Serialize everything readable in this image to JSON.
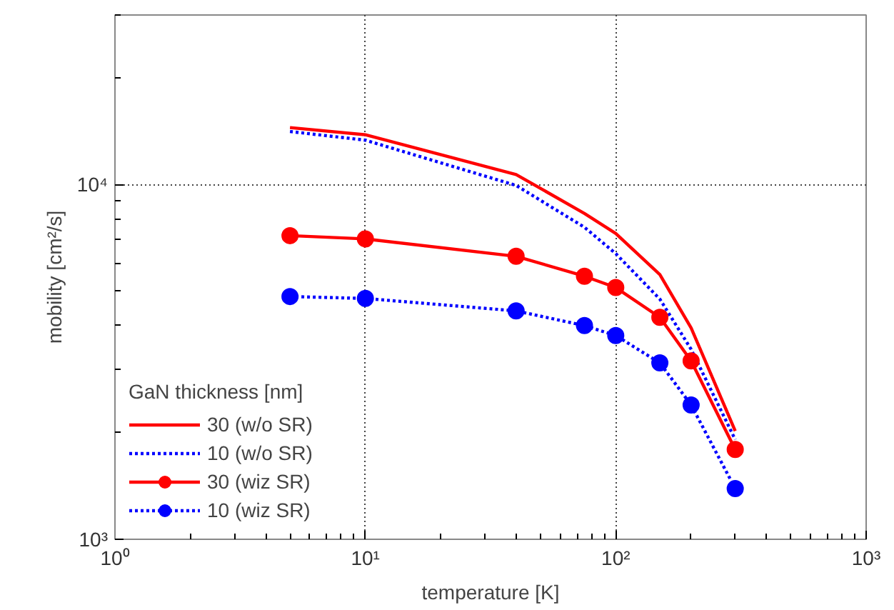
{
  "chart_data": {
    "type": "line",
    "xlabel": "temperature [K]",
    "ylabel": "mobility [cm²/s]",
    "legend_title": "GaN thickness [nm]",
    "legend": "bottom left",
    "grid": true,
    "log": "xy",
    "x": [
      5,
      10,
      40,
      75,
      100,
      150,
      200,
      300
    ],
    "xlim": [
      1,
      1000
    ],
    "ylim": [
      1000,
      30000
    ],
    "xticks": [
      {
        "value": 1,
        "label": "10⁰"
      },
      {
        "value": 10,
        "label": "10¹"
      },
      {
        "value": 100,
        "label": "10²"
      },
      {
        "value": 1000,
        "label": "10³"
      }
    ],
    "yticks": [
      {
        "value": 1000,
        "label": "10³"
      },
      {
        "value": 10000,
        "label": "10⁴"
      }
    ],
    "series": [
      {
        "name": "30 (w/o SR)",
        "color": "#ff0000",
        "line_style": "solid",
        "marker": "none",
        "values": [
          14450,
          13800,
          10660,
          8280,
          7270,
          5570,
          3940,
          2020
        ]
      },
      {
        "name": "10 (w/o SR)",
        "color": "#0000ff",
        "line_style": "dotted",
        "marker": "none",
        "values": [
          14090,
          13320,
          9930,
          7570,
          6380,
          4750,
          3430,
          1910
        ]
      },
      {
        "name": "30 (wiz SR)",
        "color": "#ff0000",
        "line_style": "solid",
        "marker": "circle",
        "values": [
          7170,
          7020,
          6270,
          5510,
          5120,
          4220,
          3180,
          1790
        ]
      },
      {
        "name": "10 (wiz SR)",
        "color": "#0000ff",
        "line_style": "dotted",
        "marker": "circle",
        "values": [
          4830,
          4770,
          4400,
          4000,
          3750,
          3140,
          2390,
          1390
        ]
      }
    ]
  }
}
